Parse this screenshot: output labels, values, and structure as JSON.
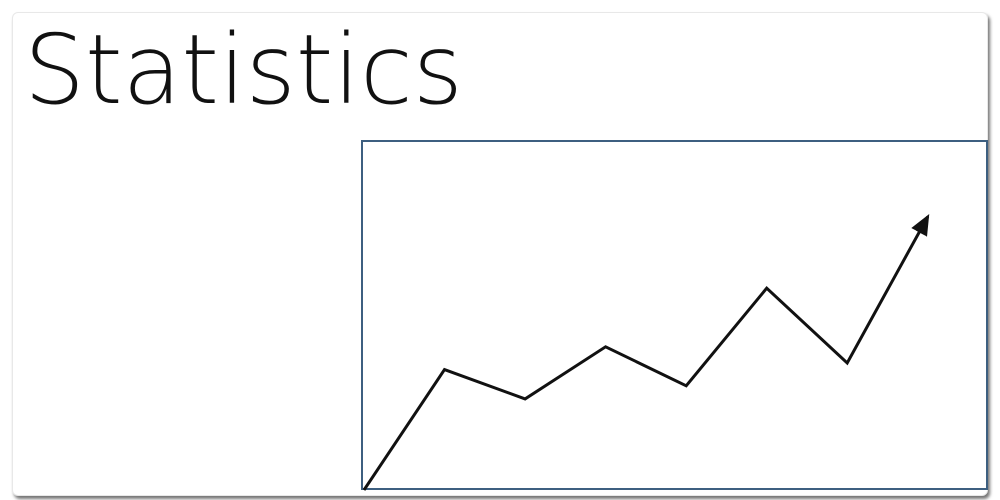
{
  "title": "Statistics",
  "colors": {
    "frame": "#3d5f80",
    "line": "#111111",
    "text": "#111111"
  },
  "icon": "trend-up-arrow-icon",
  "chart_data": {
    "type": "line",
    "arrow_end": true,
    "x": [
      0,
      1,
      2,
      3,
      4,
      5,
      6,
      7
    ],
    "values": [
      0,
      3.7,
      2.8,
      4.4,
      3.2,
      6.2,
      3.9,
      8.4
    ],
    "ylim": [
      0,
      9.4
    ],
    "xlim": [
      0,
      7.4
    ]
  }
}
